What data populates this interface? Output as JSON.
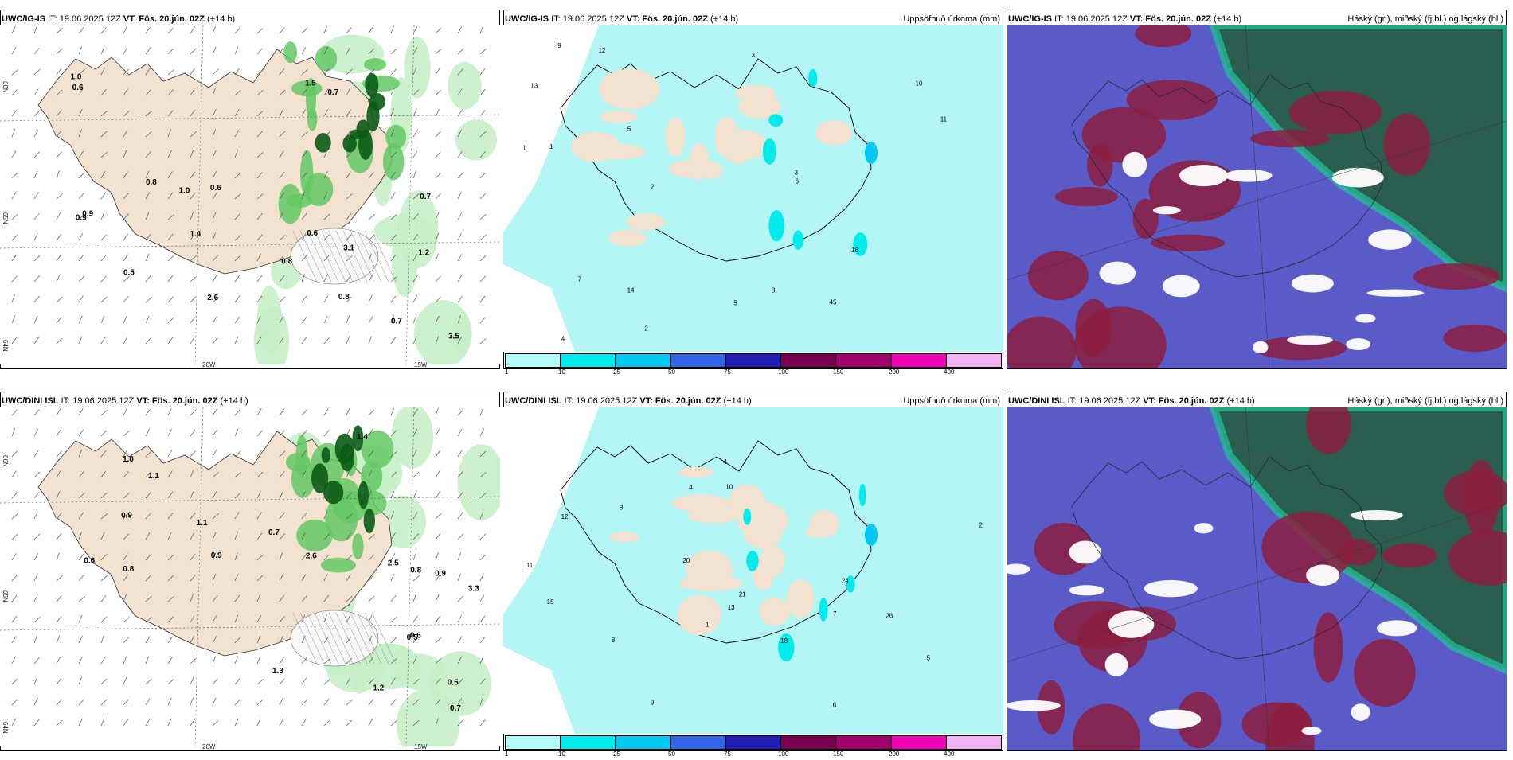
{
  "rows": [
    {
      "model": "UWC/IG-IS",
      "meta_it": "IT: 19.06.2025 12Z",
      "meta_vt_label": "VT:",
      "meta_vt": "Fös. 20.jún. 02Z",
      "meta_lead": "(+14 h)",
      "axis_lon": [
        "20W",
        "15W"
      ],
      "axis_lat": [
        "66N",
        "65N",
        "64N"
      ]
    },
    {
      "model": "UWC/DINI ISL",
      "meta_it": "IT: 19.06.2025 12Z",
      "meta_vt_label": "VT:",
      "meta_vt": "Fös. 20.jún. 02Z",
      "meta_lead": "(+14 h)",
      "axis_lon": [
        "20W",
        "15W"
      ],
      "axis_lat": [
        "66N",
        "65N",
        "64N"
      ]
    }
  ],
  "precip_title": "Uppsöfnuð úrkoma (mm)",
  "cloud_title": "Háský (gr.), miðský (fj.bl.) og lágský (bl.)",
  "colorbar": {
    "ticks": [
      "1",
      "10",
      "25",
      "50",
      "75",
      "100",
      "150",
      "200",
      "400"
    ],
    "colors": [
      "#b4fafa",
      "#00ecec",
      "#00c8f0",
      "#3264e6",
      "#1e1eb4",
      "#780050",
      "#a0006e",
      "#f000b4",
      "#f0b4f0"
    ]
  },
  "colors": {
    "land": "#f2e2cf",
    "sea": "#ffffff",
    "precip_light": "#b4f5f5",
    "green_light": "#c8f0c8",
    "green_mid": "#64c864",
    "green_dark": "#0a5a14",
    "cloud_high": "#2a5c50",
    "cloud_mid": "#8c1e40",
    "cloud_low": "#5a5ac8",
    "cloud_edge": "#1ec896"
  },
  "left_labels_top": [
    "0.7",
    "0.6",
    "0.9",
    "1.0",
    "0.9",
    "0.7",
    "0.6",
    "1.5",
    "0.7",
    "0.8",
    "1.0",
    "0.6",
    "0.5",
    "0.8",
    "1.4",
    "0.8",
    "1.2",
    "2.6",
    "3.1",
    "3.5"
  ],
  "left_labels_bot": [
    "1.0",
    "0.9",
    "0.6",
    "0.7",
    "0.5",
    "1.1",
    "0.8",
    "0.7",
    "0.9",
    "1.3",
    "1.4",
    "0.6",
    "0.5",
    "2.6",
    "1.2",
    "0.8",
    "0.9",
    "1.1",
    "2.5",
    "3.3"
  ],
  "mid_labels_top": [
    "2",
    "1",
    "3",
    "4",
    "5",
    "6",
    "7",
    "11",
    "13",
    "16",
    "45",
    "14",
    "12",
    "9",
    "8",
    "10",
    "3",
    "2",
    "1",
    "5"
  ],
  "mid_labels_bot": [
    "6",
    "4",
    "12",
    "20",
    "18",
    "21",
    "24",
    "26",
    "15",
    "11",
    "10",
    "8",
    "7",
    "5",
    "3",
    "2",
    "1",
    "13",
    "9",
    "4"
  ]
}
